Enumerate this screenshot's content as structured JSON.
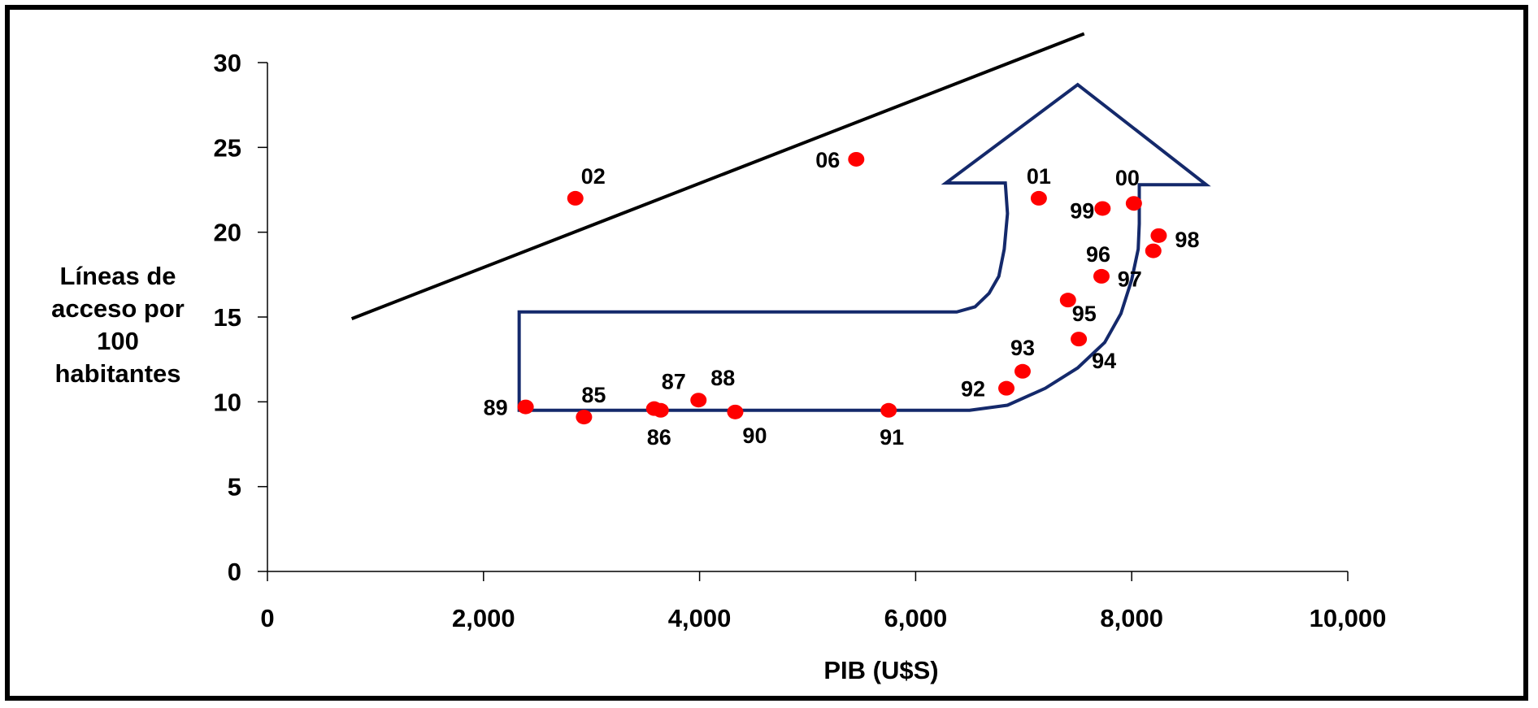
{
  "chart_data": {
    "type": "scatter",
    "xlabel": "PIB (U$S)",
    "ylabel": "Líneas de acceso por 100 habitantes",
    "xlim": [
      0,
      10000
    ],
    "ylim": [
      0,
      30
    ],
    "x_ticks": [
      0,
      2000,
      4000,
      6000,
      8000,
      10000
    ],
    "x_tick_labels": [
      "0",
      "2,000",
      "4,000",
      "6,000",
      "8,000",
      "10,000"
    ],
    "y_ticks": [
      0,
      5,
      10,
      15,
      20,
      25,
      30
    ],
    "y_tick_labels": [
      "0",
      "5",
      "10",
      "15",
      "20",
      "25",
      "30"
    ],
    "grid": false,
    "point_color": "#ff0000",
    "points": [
      {
        "label": "85",
        "x": 2930,
        "y": 9.1
      },
      {
        "label": "86",
        "x": 3640,
        "y": 9.5
      },
      {
        "label": "87",
        "x": 3580,
        "y": 9.6
      },
      {
        "label": "88",
        "x": 3990,
        "y": 10.1
      },
      {
        "label": "89",
        "x": 2390,
        "y": 9.7
      },
      {
        "label": "90",
        "x": 4330,
        "y": 9.4
      },
      {
        "label": "91",
        "x": 5750,
        "y": 9.5
      },
      {
        "label": "92",
        "x": 6840,
        "y": 10.8
      },
      {
        "label": "93",
        "x": 6990,
        "y": 11.8
      },
      {
        "label": "94",
        "x": 7510,
        "y": 13.7
      },
      {
        "label": "95",
        "x": 7410,
        "y": 16.0
      },
      {
        "label": "96",
        "x": 7720,
        "y": 17.4
      },
      {
        "label": "97",
        "x": 8200,
        "y": 18.9
      },
      {
        "label": "98",
        "x": 8250,
        "y": 19.8
      },
      {
        "label": "99",
        "x": 7730,
        "y": 21.4
      },
      {
        "label": "00",
        "x": 8020,
        "y": 21.7
      },
      {
        "label": "01",
        "x": 7140,
        "y": 22.0
      },
      {
        "label": "02",
        "x": 2850,
        "y": 22.0
      },
      {
        "label": "06",
        "x": 5450,
        "y": 24.3
      }
    ],
    "trend_line": {
      "color": "#000000",
      "points": [
        [
          780,
          14.9
        ],
        [
          7560,
          31.7
        ]
      ]
    },
    "arrow_annotation": {
      "color": "#14296b",
      "points": [
        [
          2330,
          9.5
        ],
        [
          6500,
          9.5
        ],
        [
          6850,
          9.8
        ],
        [
          7200,
          10.8
        ],
        [
          7500,
          12.0
        ],
        [
          7750,
          13.5
        ],
        [
          7900,
          15.2
        ],
        [
          8000,
          17.2
        ],
        [
          8060,
          19.0
        ],
        [
          8070,
          20.5
        ],
        [
          8070,
          22.8
        ],
        [
          8690,
          22.8
        ],
        [
          7500,
          28.7
        ],
        [
          6280,
          22.9
        ],
        [
          6830,
          22.9
        ],
        [
          6850,
          21.1
        ],
        [
          6820,
          19.0
        ],
        [
          6770,
          17.4
        ],
        [
          6680,
          16.4
        ],
        [
          6550,
          15.6
        ],
        [
          6380,
          15.3
        ],
        [
          2330,
          15.3
        ]
      ]
    }
  }
}
